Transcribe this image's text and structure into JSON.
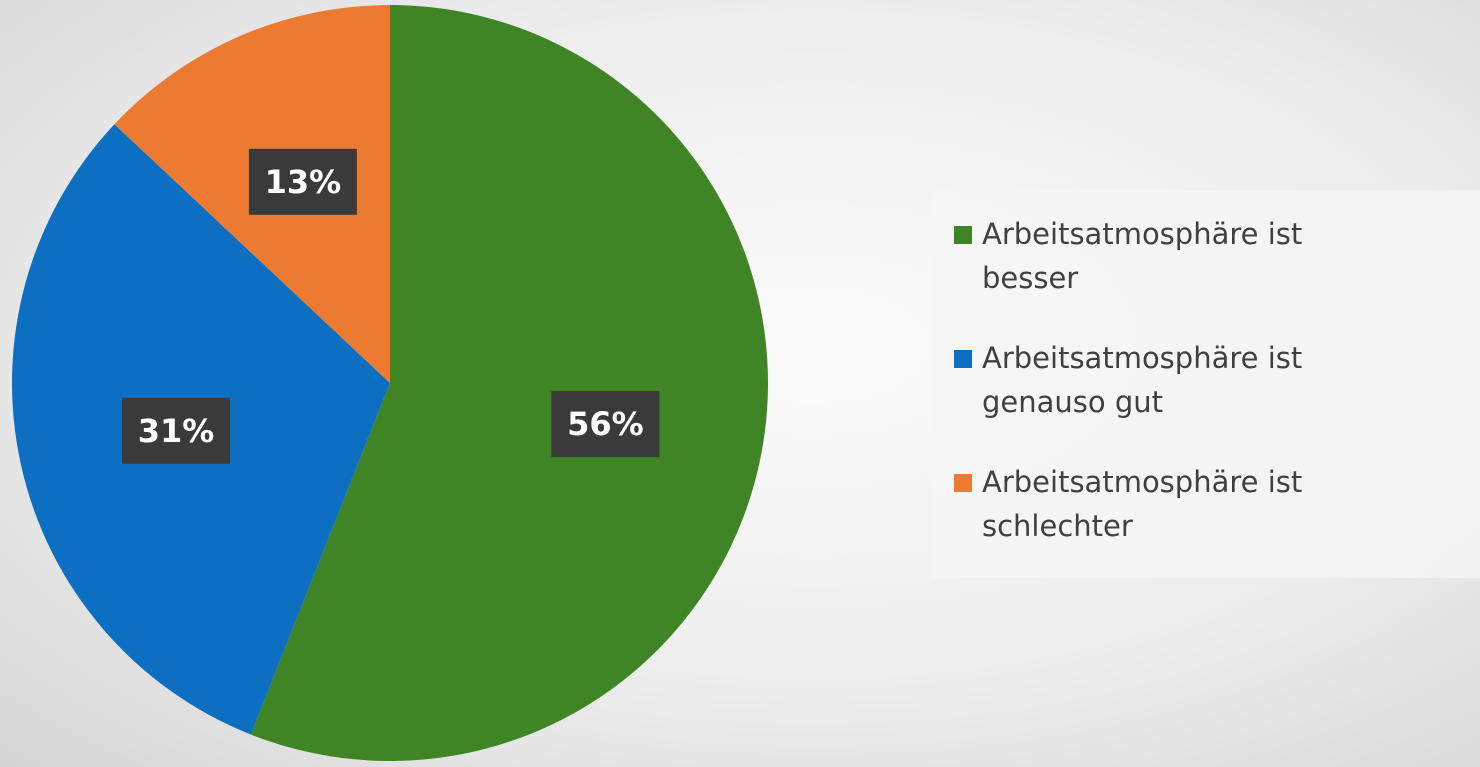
{
  "chart_data": {
    "type": "pie",
    "title": "",
    "slices": [
      {
        "label": "Arbeitsatmosphäre ist besser",
        "value": 56,
        "display": "56%",
        "color": "#3f8425"
      },
      {
        "label": "Arbeitsatmosphäre ist genauso gut",
        "value": 31,
        "display": "31%",
        "color": "#0c6fc1"
      },
      {
        "label": "Arbeitsatmosphäre ist schlechter",
        "value": 13,
        "display": "13%",
        "color": "#ec7a30"
      }
    ],
    "start_angle_deg": 0,
    "direction": "clockwise",
    "legend_position": "right"
  }
}
